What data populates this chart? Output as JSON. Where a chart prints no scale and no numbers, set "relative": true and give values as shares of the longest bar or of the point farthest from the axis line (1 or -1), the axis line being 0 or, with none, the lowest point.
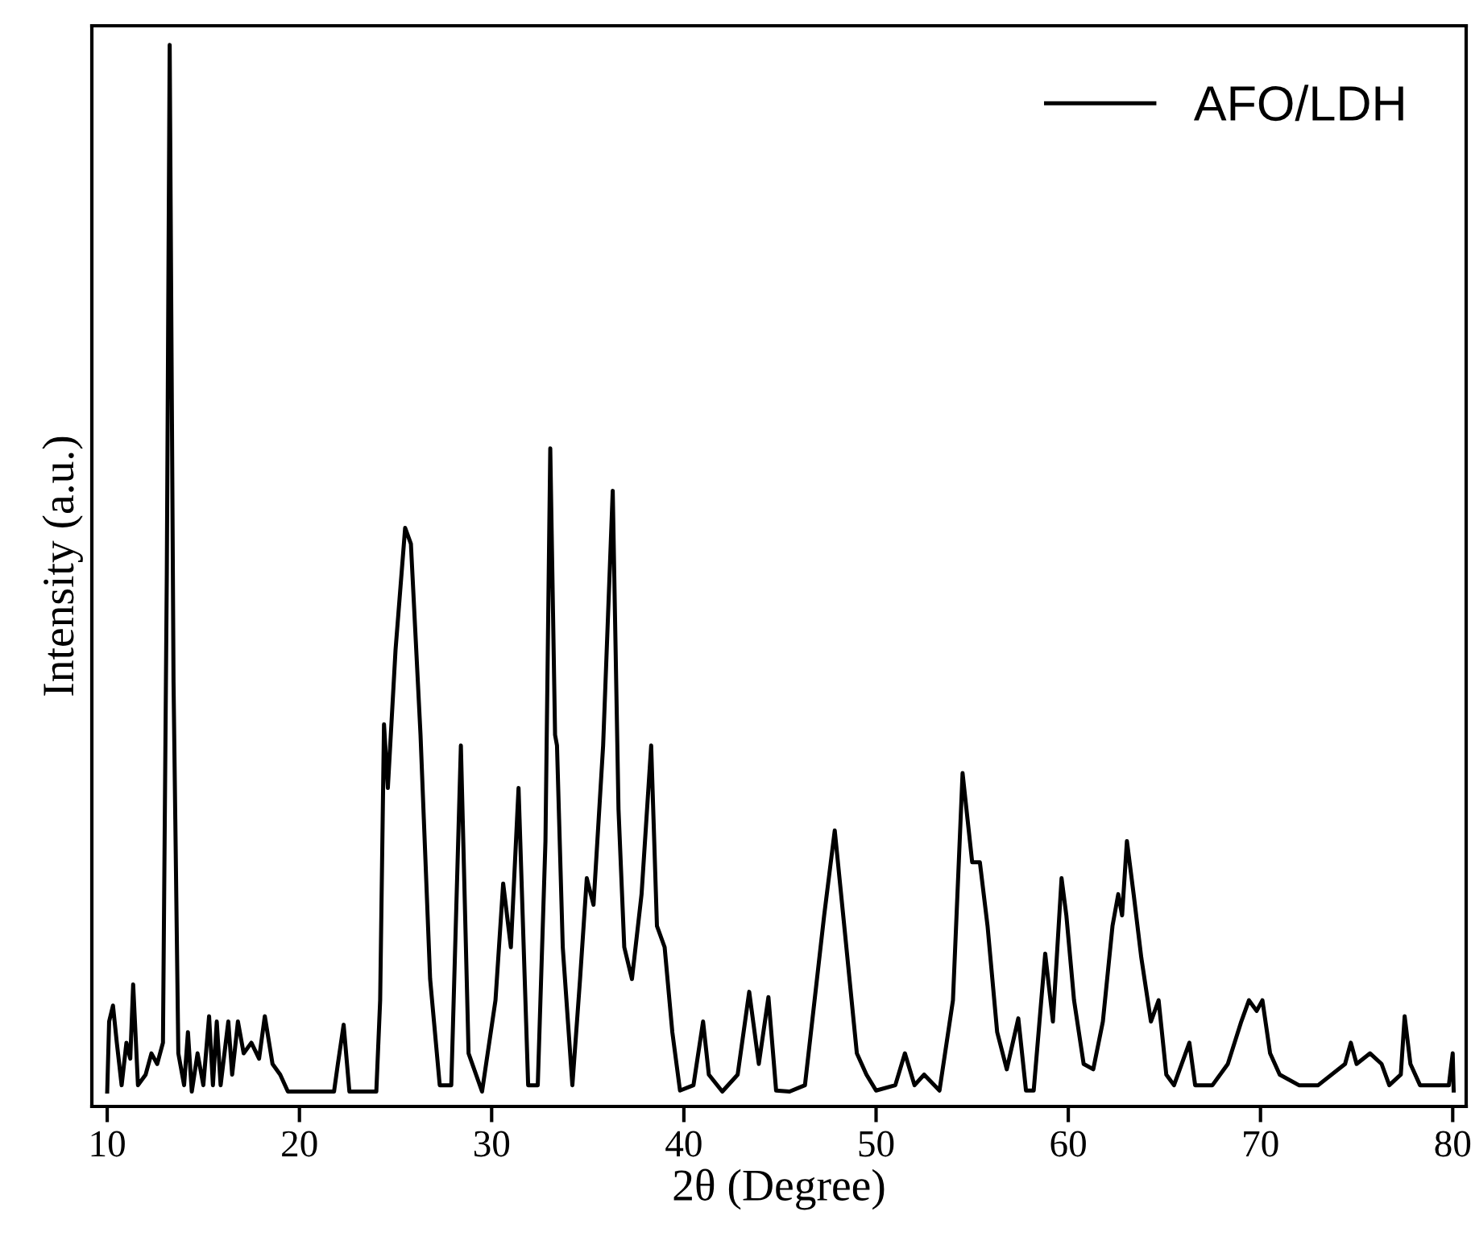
{
  "chart_data": {
    "type": "line",
    "relative": true,
    "xlabel": "2θ (Degree)",
    "ylabel": "Intensity (a.u.)",
    "xlim": [
      9.2,
      80.7
    ],
    "xticks": [
      10,
      20,
      30,
      40,
      50,
      60,
      70,
      80
    ],
    "legend": "top right",
    "grid": false,
    "tick_labels": "x",
    "series": [
      {
        "name": "AFO/LDH",
        "color": "#000000",
        "x": [
          10.0,
          10.1,
          10.3,
          10.5,
          10.75,
          11.0,
          11.2,
          11.35,
          11.6,
          12.0,
          12.3,
          12.6,
          12.9,
          13.1,
          13.25,
          13.45,
          13.7,
          14.0,
          14.2,
          14.4,
          14.7,
          15.0,
          15.3,
          15.5,
          15.7,
          15.9,
          16.3,
          16.5,
          16.8,
          17.1,
          17.5,
          17.9,
          18.2,
          18.6,
          19.0,
          19.4,
          21.8,
          22.0,
          22.3,
          22.6,
          24.0,
          24.2,
          24.4,
          24.6,
          25.0,
          25.5,
          25.8,
          26.3,
          26.8,
          27.3,
          27.9,
          28.4,
          28.8,
          29.5,
          30.2,
          30.6,
          31.0,
          31.4,
          31.9,
          32.4,
          32.8,
          33.05,
          33.3,
          33.4,
          33.7,
          34.2,
          34.6,
          34.95,
          35.3,
          35.8,
          36.3,
          36.6,
          36.9,
          37.3,
          37.8,
          38.3,
          38.6,
          39.0,
          39.4,
          39.8,
          40.5,
          41.0,
          41.3,
          42.0,
          42.8,
          43.4,
          43.9,
          44.4,
          44.8,
          45.5,
          46.3,
          46.8,
          47.3,
          47.85,
          48.4,
          49.0,
          49.5,
          50.0,
          51.0,
          51.5,
          52.0,
          52.5,
          53.3,
          54.0,
          54.5,
          55.0,
          55.4,
          55.8,
          56.3,
          56.8,
          57.4,
          57.8,
          58.2,
          58.8,
          59.2,
          59.65,
          59.9,
          60.3,
          60.8,
          61.3,
          61.8,
          62.3,
          62.6,
          62.8,
          63.05,
          63.4,
          63.8,
          64.3,
          64.7,
          65.1,
          65.5,
          66.3,
          66.6,
          67.5,
          68.3,
          69.0,
          69.4,
          69.8,
          70.1,
          70.5,
          71.0,
          72.0,
          73.0,
          74.4,
          74.7,
          75.0,
          75.7,
          76.3,
          76.7,
          77.3,
          77.5,
          77.8,
          78.3,
          79.0,
          79.8,
          80.0,
          80.05
        ],
        "values": [
          0.014,
          0.08,
          0.095,
          0.06,
          0.02,
          0.06,
          0.045,
          0.115,
          0.02,
          0.03,
          0.05,
          0.04,
          0.06,
          0.5,
          1.0,
          0.4,
          0.05,
          0.02,
          0.07,
          0.014,
          0.05,
          0.02,
          0.085,
          0.02,
          0.08,
          0.02,
          0.08,
          0.03,
          0.08,
          0.05,
          0.06,
          0.045,
          0.085,
          0.04,
          0.03,
          0.014,
          0.014,
          0.04,
          0.077,
          0.014,
          0.014,
          0.1,
          0.36,
          0.3,
          0.43,
          0.545,
          0.53,
          0.35,
          0.12,
          0.02,
          0.02,
          0.34,
          0.05,
          0.014,
          0.1,
          0.21,
          0.15,
          0.3,
          0.02,
          0.02,
          0.25,
          0.62,
          0.35,
          0.34,
          0.15,
          0.02,
          0.12,
          0.215,
          0.19,
          0.34,
          0.58,
          0.28,
          0.15,
          0.12,
          0.2,
          0.34,
          0.17,
          0.15,
          0.07,
          0.015,
          0.02,
          0.08,
          0.03,
          0.014,
          0.03,
          0.108,
          0.04,
          0.103,
          0.015,
          0.014,
          0.02,
          0.1,
          0.18,
          0.26,
          0.16,
          0.05,
          0.03,
          0.015,
          0.02,
          0.05,
          0.02,
          0.03,
          0.015,
          0.1,
          0.314,
          0.23,
          0.23,
          0.17,
          0.07,
          0.035,
          0.083,
          0.015,
          0.015,
          0.144,
          0.08,
          0.215,
          0.18,
          0.1,
          0.04,
          0.035,
          0.08,
          0.17,
          0.2,
          0.18,
          0.25,
          0.2,
          0.14,
          0.08,
          0.1,
          0.03,
          0.02,
          0.06,
          0.02,
          0.02,
          0.04,
          0.08,
          0.1,
          0.09,
          0.1,
          0.05,
          0.03,
          0.02,
          0.02,
          0.04,
          0.06,
          0.04,
          0.05,
          0.04,
          0.02,
          0.03,
          0.085,
          0.04,
          0.02,
          0.02,
          0.02,
          0.05,
          0.015
        ]
      }
    ]
  }
}
